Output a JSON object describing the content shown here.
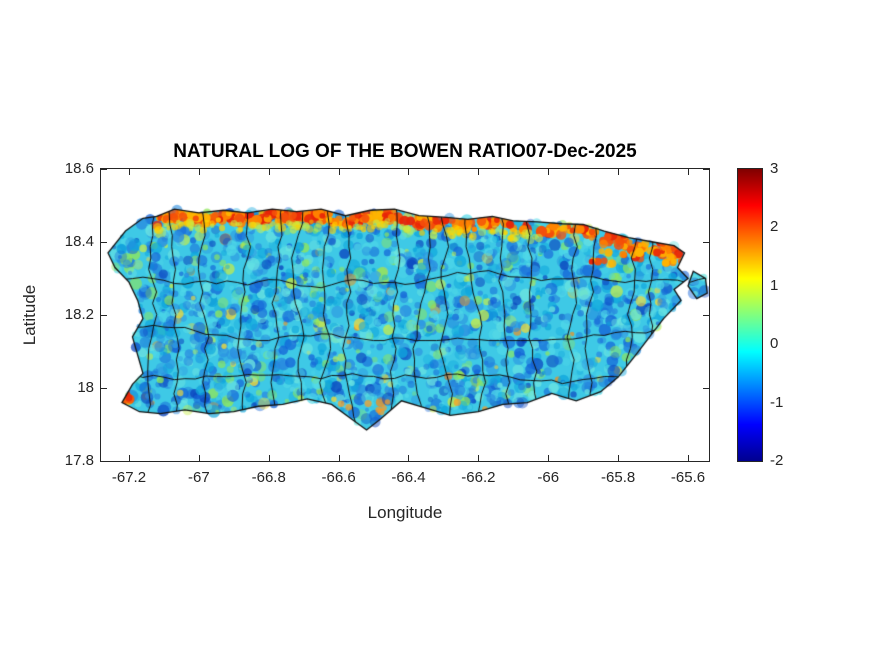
{
  "figure": {
    "title": "NATURAL LOG OF THE BOWEN RATIO07-Dec-2025",
    "xlabel": "Longitude",
    "ylabel": "Latitude",
    "background": "#ffffff"
  },
  "chart_data": {
    "type": "heatmap",
    "title": "NATURAL LOG OF THE BOWEN RATIO07-Dec-2025",
    "date_shown": "07-Dec-2025",
    "xlabel": "Longitude",
    "ylabel": "Latitude",
    "xlim": [
      -67.28,
      -65.54
    ],
    "ylim": [
      17.8,
      18.6
    ],
    "xticks": [
      -67.2,
      -67,
      -66.8,
      -66.6,
      -66.4,
      -66.2,
      -66,
      -65.8,
      -65.6
    ],
    "yticks": [
      17.8,
      18,
      18.2,
      18.4,
      18.6
    ],
    "grid": false,
    "legend": "none",
    "colorbar": {
      "min": -2,
      "max": 3,
      "ticks": [
        -2,
        -1,
        0,
        1,
        2,
        3
      ],
      "colormap": "jet",
      "stops": [
        [
          "#00008F",
          0
        ],
        [
          "#0000FF",
          0.125
        ],
        [
          "#00FFFF",
          0.375
        ],
        [
          "#FFFF00",
          0.625
        ],
        [
          "#FF0000",
          0.875
        ],
        [
          "#800000",
          1
        ]
      ]
    },
    "region": "Puerto Rico with municipality boundaries",
    "grid_estimate": {
      "lon": [
        -67.2,
        -67.0,
        -66.8,
        -66.6,
        -66.4,
        -66.2,
        -66.0,
        -65.8,
        -65.6
      ],
      "lat": [
        18.45,
        18.3,
        18.15,
        18.0
      ],
      "values": [
        [
          null,
          1.9,
          2.1,
          1.8,
          1.6,
          1.1,
          0.6,
          1.4,
          null
        ],
        [
          -0.2,
          -0.5,
          -0.3,
          -0.4,
          -0.6,
          -0.5,
          -0.3,
          -0.6,
          -0.9
        ],
        [
          -0.5,
          -0.7,
          -0.6,
          -0.8,
          -0.7,
          -0.5,
          -0.6,
          -0.7,
          null
        ],
        [
          1.7,
          -0.4,
          -0.6,
          -0.3,
          -0.5,
          -0.4,
          -0.6,
          null,
          null
        ]
      ]
    },
    "field_summary": {
      "interior": "mostly -1 to 0.5 (blue to cyan, scattered green speckles)",
      "north_coast_band": {
        "lon_range": [
          -67.12,
          -65.9
        ],
        "values": [
          1.5,
          2.5
        ]
      },
      "northeast_patch": {
        "lon_range": [
          -65.88,
          -65.64
        ],
        "lat_range": [
          18.34,
          18.42
        ],
        "values": [
          1.5,
          2.5
        ]
      },
      "southwest_patch": {
        "lon": -67.21,
        "lat": 17.96,
        "values": [
          1.5,
          2.2
        ]
      }
    },
    "north_coast_lonlat": [
      [
        -67.26,
        18.37
      ],
      [
        -67.21,
        18.43
      ],
      [
        -67.16,
        18.465
      ],
      [
        -67.12,
        18.47
      ],
      [
        -67.07,
        18.49
      ],
      [
        -67.0,
        18.48
      ],
      [
        -66.93,
        18.487
      ],
      [
        -66.86,
        18.48
      ],
      [
        -66.79,
        18.49
      ],
      [
        -66.72,
        18.483
      ],
      [
        -66.65,
        18.49
      ],
      [
        -66.58,
        18.472
      ],
      [
        -66.51,
        18.487
      ],
      [
        -66.44,
        18.49
      ],
      [
        -66.37,
        18.472
      ],
      [
        -66.3,
        18.468
      ],
      [
        -66.23,
        18.462
      ],
      [
        -66.16,
        18.47
      ],
      [
        -66.1,
        18.458
      ],
      [
        -66.03,
        18.455
      ],
      [
        -65.96,
        18.45
      ],
      [
        -65.9,
        18.448
      ],
      [
        -65.84,
        18.43
      ],
      [
        -65.77,
        18.412
      ],
      [
        -65.7,
        18.4
      ],
      [
        -65.64,
        18.39
      ],
      [
        -65.61,
        18.37
      ]
    ],
    "region_outline_lonlat": [
      [
        -67.26,
        18.37
      ],
      [
        -67.21,
        18.43
      ],
      [
        -67.16,
        18.465
      ],
      [
        -67.12,
        18.47
      ],
      [
        -67.07,
        18.49
      ],
      [
        -67.0,
        18.48
      ],
      [
        -66.93,
        18.487
      ],
      [
        -66.86,
        18.48
      ],
      [
        -66.79,
        18.49
      ],
      [
        -66.72,
        18.483
      ],
      [
        -66.65,
        18.49
      ],
      [
        -66.58,
        18.472
      ],
      [
        -66.51,
        18.487
      ],
      [
        -66.44,
        18.49
      ],
      [
        -66.37,
        18.472
      ],
      [
        -66.3,
        18.468
      ],
      [
        -66.23,
        18.462
      ],
      [
        -66.16,
        18.47
      ],
      [
        -66.1,
        18.458
      ],
      [
        -66.03,
        18.455
      ],
      [
        -65.96,
        18.45
      ],
      [
        -65.9,
        18.448
      ],
      [
        -65.84,
        18.43
      ],
      [
        -65.77,
        18.412
      ],
      [
        -65.7,
        18.4
      ],
      [
        -65.64,
        18.39
      ],
      [
        -65.61,
        18.37
      ],
      [
        -65.63,
        18.33
      ],
      [
        -65.6,
        18.3
      ],
      [
        -65.64,
        18.27
      ],
      [
        -65.62,
        18.24
      ],
      [
        -65.67,
        18.19
      ],
      [
        -65.71,
        18.14
      ],
      [
        -65.75,
        18.09
      ],
      [
        -65.8,
        18.03
      ],
      [
        -65.85,
        17.99
      ],
      [
        -65.92,
        17.965
      ],
      [
        -65.99,
        17.985
      ],
      [
        -66.06,
        17.96
      ],
      [
        -66.13,
        17.955
      ],
      [
        -66.2,
        17.935
      ],
      [
        -66.28,
        17.925
      ],
      [
        -66.35,
        17.945
      ],
      [
        -66.42,
        17.965
      ],
      [
        -66.48,
        17.915
      ],
      [
        -66.52,
        17.885
      ],
      [
        -66.57,
        17.92
      ],
      [
        -66.62,
        17.955
      ],
      [
        -66.69,
        17.97
      ],
      [
        -66.76,
        17.955
      ],
      [
        -66.83,
        17.95
      ],
      [
        -66.9,
        17.935
      ],
      [
        -66.97,
        17.93
      ],
      [
        -67.04,
        17.94
      ],
      [
        -67.11,
        17.93
      ],
      [
        -67.17,
        17.935
      ],
      [
        -67.22,
        17.96
      ],
      [
        -67.19,
        18.01
      ],
      [
        -67.16,
        18.04
      ],
      [
        -67.175,
        18.09
      ],
      [
        -67.19,
        18.14
      ],
      [
        -67.16,
        18.19
      ],
      [
        -67.175,
        18.24
      ],
      [
        -67.2,
        18.29
      ],
      [
        -67.24,
        18.33
      ]
    ],
    "islet_lonlat": [
      [
        -65.585,
        18.32
      ],
      [
        -65.55,
        18.3
      ],
      [
        -65.545,
        18.26
      ],
      [
        -65.575,
        18.245
      ],
      [
        -65.6,
        18.28
      ]
    ],
    "boundary_lines": {
      "color": "#111111",
      "vertical_lons": [
        -67.14,
        -67.055,
        -66.97,
        -66.885,
        -66.8,
        -66.715,
        -66.63,
        -66.545,
        -66.46,
        -66.375,
        -66.29,
        -66.205,
        -66.12,
        -66.035,
        -65.95,
        -65.865,
        -65.78,
        -65.695
      ],
      "horizontal_lats": [
        18.31,
        18.17,
        18.04
      ]
    },
    "palette": {
      "base": "#3ec9e6",
      "speckles": [
        {
          "color": "#0c46bf",
          "weight": 0.1
        },
        {
          "color": "#1565d8",
          "weight": 0.2
        },
        {
          "color": "#2a8ce0",
          "weight": 0.17
        },
        {
          "color": "#0fa6dc",
          "weight": 0.16
        },
        {
          "color": "#4fd8e8",
          "weight": 0.14
        },
        {
          "color": "#6ee6e0",
          "weight": 0.1
        },
        {
          "color": "#8fe65a",
          "weight": 0.07
        },
        {
          "color": "#c8ec46",
          "weight": 0.03
        },
        {
          "color": "#f2d838",
          "weight": 0.02
        },
        {
          "color": "#f09020",
          "weight": 0.01
        }
      ],
      "hot": [
        "#f4500a",
        "#ff8400",
        "#e82408",
        "#ffb400"
      ],
      "fringe": [
        "#ffd400",
        "#c8ec46"
      ]
    }
  }
}
